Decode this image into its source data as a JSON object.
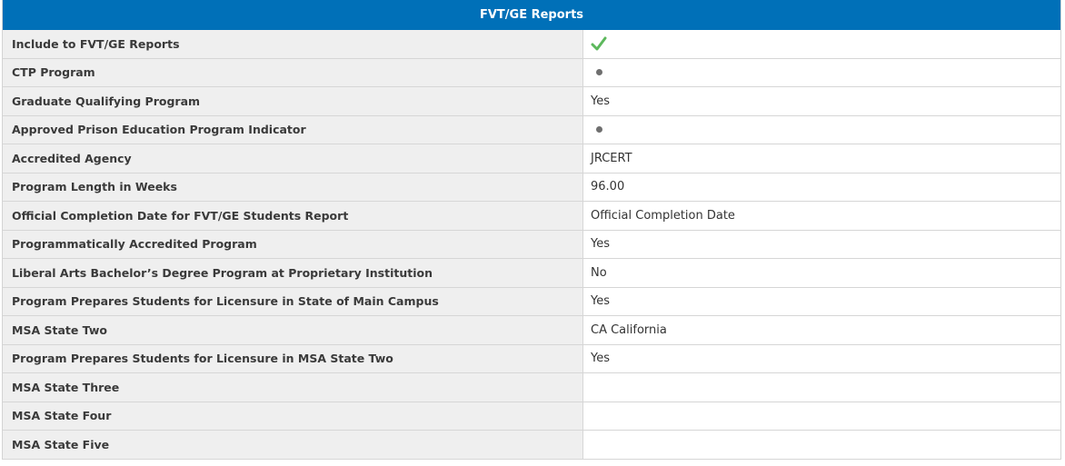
{
  "panel": {
    "title": "FVT/GE Reports"
  },
  "rows": [
    {
      "label": "Include to FVT/GE Reports",
      "value": "",
      "icon": "checkmark-icon",
      "icon_color": "#5cb85c"
    },
    {
      "label": "CTP Program",
      "value": "",
      "icon": "bullet-icon"
    },
    {
      "label": "Graduate Qualifying Program",
      "value": "Yes"
    },
    {
      "label": "Approved Prison Education Program Indicator",
      "value": "",
      "icon": "bullet-icon"
    },
    {
      "label": "Accredited Agency",
      "value": "JRCERT"
    },
    {
      "label": "Program Length in Weeks",
      "value": "96.00"
    },
    {
      "label": "Official Completion Date for FVT/GE Students Report",
      "value": "Official Completion Date"
    },
    {
      "label": "Programmatically Accredited Program",
      "value": "Yes"
    },
    {
      "label": "Liberal Arts Bachelor’s Degree Program at Proprietary Institution",
      "value": "No"
    },
    {
      "label": "Program Prepares Students for Licensure in State of Main Campus",
      "value": "Yes"
    },
    {
      "label": "MSA State Two",
      "value": "CA California"
    },
    {
      "label": "Program Prepares Students for Licensure in MSA State Two",
      "value": "Yes"
    },
    {
      "label": "MSA State Three",
      "value": ""
    },
    {
      "label": "MSA State Four",
      "value": ""
    },
    {
      "label": "MSA State Five",
      "value": ""
    }
  ],
  "colors": {
    "header_bg": "#0070b8",
    "label_bg": "#efefef",
    "check": "#5cb85c"
  }
}
